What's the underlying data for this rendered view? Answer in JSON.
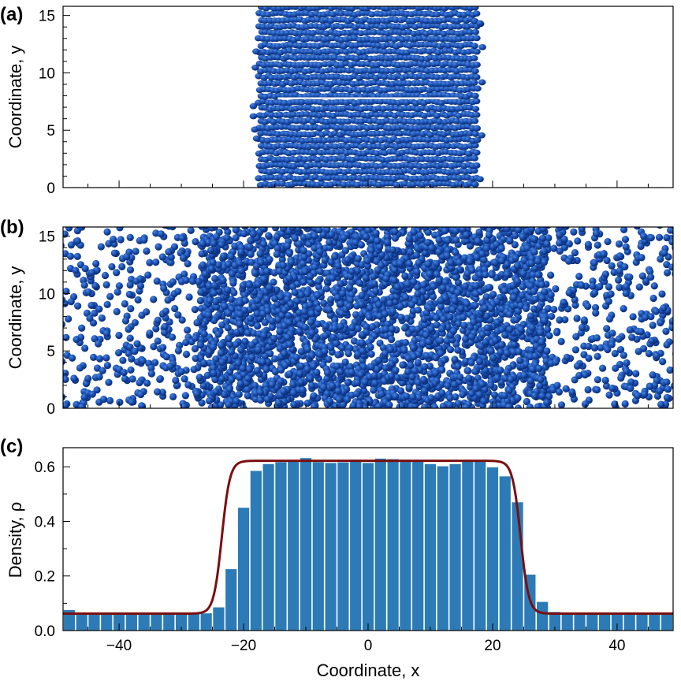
{
  "colors": {
    "particle": "#1a4fb0",
    "particle_dark": "#0d2f78",
    "particle_highlight": "#3a78d8",
    "bar": "#2c7bb6",
    "fit_line": "#7a0f10",
    "axis": "#000000"
  },
  "chart_data": [
    {
      "type": "scatter",
      "panel_label": "(a)",
      "ylabel": "Coordinate, y",
      "xlim": [
        -49,
        49
      ],
      "ylim": [
        0,
        15.8
      ],
      "yticks": [
        0,
        5,
        10,
        15
      ],
      "xticks_labeled": false,
      "description_region": {
        "x_min": -17.5,
        "x_max": 17.5,
        "y_min": 0,
        "y_max": 15.8,
        "layered": true,
        "gap_y": 7.8
      }
    },
    {
      "type": "scatter",
      "panel_label": "(b)",
      "ylabel": "Coordinate, y",
      "xlim": [
        -49,
        49
      ],
      "ylim": [
        0,
        15.8
      ],
      "yticks": [
        0,
        5,
        10,
        15
      ],
      "xticks_labeled": false,
      "dense_region": {
        "x_min": -24,
        "x_max": 26
      },
      "dilute_density_fraction": 0.1
    },
    {
      "type": "bar",
      "panel_label": "(c)",
      "xlabel": "Coordinate, x",
      "ylabel": "Density, ρ",
      "xlim": [
        -49,
        49
      ],
      "ylim": [
        0,
        0.67
      ],
      "xticks": [
        -40,
        -20,
        0,
        20,
        40
      ],
      "xtick_labels": [
        "−40",
        "−20",
        "0",
        "20",
        "40"
      ],
      "yticks": [
        0.0,
        0.2,
        0.4,
        0.6
      ],
      "ytick_labels": [
        "0.0",
        "0.2",
        "0.4",
        "0.6"
      ],
      "bin_start": -49,
      "bin_width": 2,
      "values": [
        0.075,
        0.066,
        0.062,
        0.061,
        0.061,
        0.062,
        0.061,
        0.063,
        0.062,
        0.061,
        0.062,
        0.063,
        0.085,
        0.225,
        0.45,
        0.585,
        0.61,
        0.617,
        0.62,
        0.632,
        0.617,
        0.614,
        0.616,
        0.626,
        0.614,
        0.63,
        0.628,
        0.626,
        0.618,
        0.61,
        0.602,
        0.61,
        0.623,
        0.618,
        0.598,
        0.565,
        0.47,
        0.205,
        0.105,
        0.068,
        0.061,
        0.062,
        0.061,
        0.061,
        0.062,
        0.061,
        0.06,
        0.061,
        0.063
      ],
      "fit": {
        "rho_liquid": 0.622,
        "rho_vapor": 0.062,
        "interface_left": -23.5,
        "interface_right": 24.5,
        "width": 1.3
      }
    }
  ]
}
